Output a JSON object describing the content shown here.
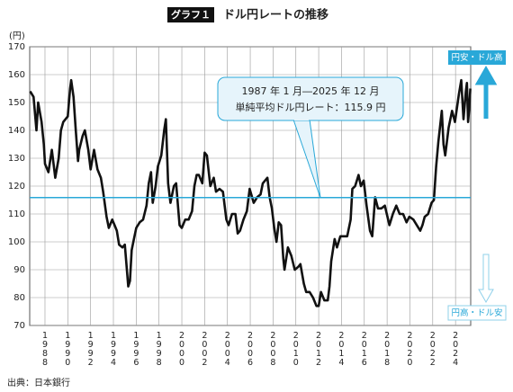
{
  "chart_data": {
    "type": "line",
    "title_badge": "グラフ１",
    "title": "ドル円レートの推移",
    "y_label": "(円)",
    "source": "出典：日本銀行",
    "xlim": [
      1986.66,
      2025.33
    ],
    "xticks": [
      1988,
      1990,
      1992,
      1994,
      1996,
      1998,
      2000,
      2002,
      2004,
      2006,
      2008,
      2010,
      2012,
      2014,
      2016,
      2018,
      2020,
      2022,
      2024
    ],
    "ylim": [
      70,
      170
    ],
    "yticks": [
      70,
      80,
      90,
      100,
      110,
      120,
      130,
      140,
      150,
      160,
      170
    ],
    "grid": true,
    "color": "#111111",
    "average": 115.9,
    "average_color": "#29a8d8",
    "annotation": [
      "1987 年 1 月―2025 年 12 月",
      "単純平均ドル円レート：115.9 円"
    ],
    "up_label": "円安・ドル高",
    "down_label": "円高・ドル安",
    "x": [
      1986.7,
      1987.0,
      1987.25,
      1987.4,
      1987.7,
      1987.9,
      1988.0,
      1988.3,
      1988.6,
      1988.9,
      1989.2,
      1989.4,
      1989.6,
      1989.8,
      1990.0,
      1990.2,
      1990.3,
      1990.5,
      1990.7,
      1990.9,
      1991.0,
      1991.3,
      1991.5,
      1991.8,
      1992.0,
      1992.3,
      1992.6,
      1992.9,
      1993.1,
      1993.4,
      1993.6,
      1993.9,
      1994.1,
      1994.3,
      1994.5,
      1994.8,
      1995.0,
      1995.3,
      1995.45,
      1995.6,
      1995.8,
      1996.0,
      1996.3,
      1996.6,
      1996.9,
      1997.1,
      1997.3,
      1997.45,
      1997.7,
      1997.9,
      1998.2,
      1998.45,
      1998.6,
      1998.8,
      1999.0,
      1999.3,
      1999.5,
      1999.8,
      2000.0,
      2000.3,
      2000.6,
      2000.9,
      2001.1,
      2001.3,
      2001.5,
      2001.8,
      2002.0,
      2002.2,
      2002.5,
      2002.8,
      2003.0,
      2003.3,
      2003.6,
      2003.9,
      2004.1,
      2004.4,
      2004.7,
      2004.9,
      2005.1,
      2005.4,
      2005.7,
      2005.95,
      2006.3,
      2006.6,
      2006.9,
      2007.1,
      2007.5,
      2007.7,
      2007.9,
      2008.1,
      2008.3,
      2008.5,
      2008.7,
      2008.9,
      2009.0,
      2009.3,
      2009.6,
      2009.9,
      2010.2,
      2010.4,
      2010.7,
      2010.9,
      2011.2,
      2011.5,
      2011.8,
      2012.0,
      2012.2,
      2012.5,
      2012.8,
      2012.95,
      2013.1,
      2013.4,
      2013.6,
      2013.9,
      2014.2,
      2014.5,
      2014.8,
      2014.95,
      2015.2,
      2015.5,
      2015.7,
      2015.95,
      2016.2,
      2016.5,
      2016.7,
      2016.95,
      2017.2,
      2017.5,
      2017.8,
      2018.2,
      2018.5,
      2018.8,
      2019.1,
      2019.4,
      2019.7,
      2019.95,
      2020.3,
      2020.6,
      2020.9,
      2021.1,
      2021.3,
      2021.6,
      2021.9,
      2022.1,
      2022.3,
      2022.5,
      2022.8,
      2022.95,
      2023.1,
      2023.4,
      2023.7,
      2023.95,
      2024.3,
      2024.5,
      2024.7,
      2024.9,
      2025.0,
      2025.1,
      2025.2,
      2025.3
    ],
    "values": [
      154,
      152,
      140,
      150,
      143,
      135,
      128,
      125,
      133,
      123,
      130,
      140,
      143,
      144,
      145,
      155,
      158,
      152,
      140,
      129,
      133,
      138,
      140,
      133,
      126,
      133,
      126,
      123,
      118,
      109,
      105,
      108,
      106,
      104,
      99,
      98,
      99,
      84,
      86,
      97,
      101,
      105,
      107,
      108,
      113,
      121,
      125,
      114,
      120,
      127,
      131,
      140,
      144,
      121,
      114,
      120,
      121,
      106,
      105,
      108,
      108,
      111,
      120,
      124,
      124,
      121,
      132,
      131,
      120,
      123,
      118,
      119,
      118,
      108,
      106,
      110,
      110,
      103,
      104,
      108,
      111,
      119,
      114,
      116,
      117,
      121,
      123,
      116,
      112,
      105,
      100,
      107,
      106,
      94,
      90,
      98,
      95,
      90,
      91,
      92,
      85,
      82,
      82,
      80,
      77,
      77,
      82,
      79,
      79,
      84,
      93,
      101,
      98,
      102,
      102,
      102,
      108,
      119,
      120,
      124,
      120,
      122,
      113,
      104,
      102,
      116,
      112,
      112,
      113,
      106,
      110,
      113,
      110,
      110,
      107,
      109,
      108,
      106,
      104,
      106,
      109,
      110,
      114,
      115,
      127,
      136,
      147,
      135,
      131,
      141,
      147,
      143,
      153,
      158,
      144,
      154,
      157,
      143,
      148,
      155
    ]
  }
}
